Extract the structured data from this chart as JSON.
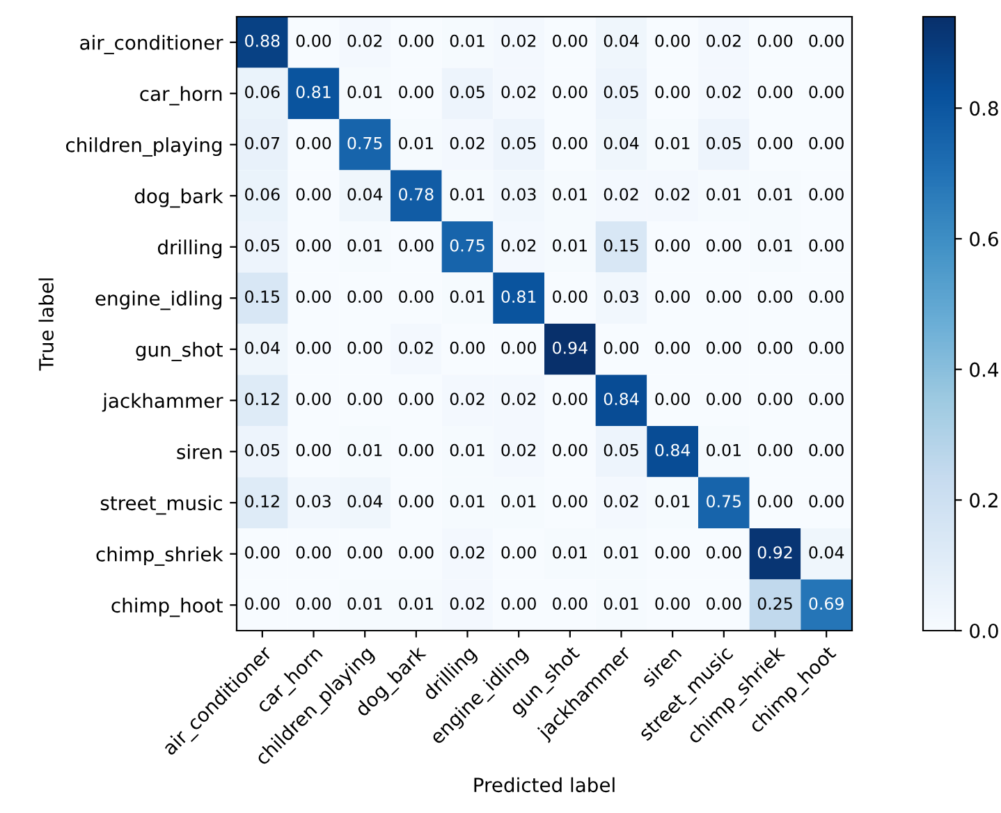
{
  "chart_data": {
    "type": "heatmap",
    "xlabel": "Predicted label",
    "ylabel": "True label",
    "categories": [
      "air_conditioner",
      "car_horn",
      "children_playing",
      "dog_bark",
      "drilling",
      "engine_idling",
      "gun_shot",
      "jackhammer",
      "siren",
      "street_music",
      "chimp_shriek",
      "chimp_hoot"
    ],
    "y_categories": [
      "air_conditioner",
      "car_horn",
      "children_playing",
      "dog_bark",
      "drilling",
      "engine_idling",
      "gun_shot",
      "jackhammer",
      "siren",
      "street_music",
      "chimp_shriek",
      "chimp_hoot"
    ],
    "cells": [
      [
        0.88,
        0.0,
        0.02,
        0.0,
        0.01,
        0.02,
        0.0,
        0.04,
        0.0,
        0.02,
        0.0,
        0.0
      ],
      [
        0.06,
        0.81,
        0.01,
        0.0,
        0.05,
        0.02,
        0.0,
        0.05,
        0.0,
        0.02,
        0.0,
        0.0
      ],
      [
        0.07,
        0.0,
        0.75,
        0.01,
        0.02,
        0.05,
        0.0,
        0.04,
        0.01,
        0.05,
        0.0,
        0.0
      ],
      [
        0.06,
        0.0,
        0.04,
        0.78,
        0.01,
        0.03,
        0.01,
        0.02,
        0.02,
        0.01,
        0.01,
        0.0
      ],
      [
        0.05,
        0.0,
        0.01,
        0.0,
        0.75,
        0.02,
        0.01,
        0.15,
        0.0,
        0.0,
        0.01,
        0.0
      ],
      [
        0.15,
        0.0,
        0.0,
        0.0,
        0.01,
        0.81,
        0.0,
        0.03,
        0.0,
        0.0,
        0.0,
        0.0
      ],
      [
        0.04,
        0.0,
        0.0,
        0.02,
        0.0,
        0.0,
        0.94,
        0.0,
        0.0,
        0.0,
        0.0,
        0.0
      ],
      [
        0.12,
        0.0,
        0.0,
        0.0,
        0.02,
        0.02,
        0.0,
        0.84,
        0.0,
        0.0,
        0.0,
        0.0
      ],
      [
        0.05,
        0.0,
        0.01,
        0.0,
        0.01,
        0.02,
        0.0,
        0.05,
        0.84,
        0.01,
        0.0,
        0.0
      ],
      [
        0.12,
        0.03,
        0.04,
        0.0,
        0.01,
        0.01,
        0.0,
        0.02,
        0.01,
        0.75,
        0.0,
        0.0
      ],
      [
        0.0,
        0.0,
        0.0,
        0.0,
        0.02,
        0.0,
        0.01,
        0.01,
        0.0,
        0.0,
        0.92,
        0.04
      ],
      [
        0.0,
        0.0,
        0.01,
        0.01,
        0.02,
        0.0,
        0.0,
        0.01,
        0.0,
        0.0,
        0.25,
        0.69
      ]
    ],
    "cell_labels": [
      [
        "0.88",
        "0.00",
        "0.02",
        "0.00",
        "0.01",
        "0.02",
        "0.00",
        "0.04",
        "0.00",
        "0.02",
        "0.00",
        "0.00"
      ],
      [
        "0.06",
        "0.81",
        "0.01",
        "0.00",
        "0.05",
        "0.02",
        "0.00",
        "0.05",
        "0.00",
        "0.02",
        "0.00",
        "0.00"
      ],
      [
        "0.07",
        "0.00",
        "0.75",
        "0.01",
        "0.02",
        "0.05",
        "0.00",
        "0.04",
        "0.01",
        "0.05",
        "0.00",
        "0.00"
      ],
      [
        "0.06",
        "0.00",
        "0.04",
        "0.78",
        "0.01",
        "0.03",
        "0.01",
        "0.02",
        "0.02",
        "0.01",
        "0.01",
        "0.00"
      ],
      [
        "0.05",
        "0.00",
        "0.01",
        "0.00",
        "0.75",
        "0.02",
        "0.01",
        "0.15",
        "0.00",
        "0.00",
        "0.01",
        "0.00"
      ],
      [
        "0.15",
        "0.00",
        "0.00",
        "0.00",
        "0.01",
        "0.81",
        "0.00",
        "0.03",
        "0.00",
        "0.00",
        "0.00",
        "0.00"
      ],
      [
        "0.04",
        "0.00",
        "0.00",
        "0.02",
        "0.00",
        "0.00",
        "0.94",
        "0.00",
        "0.00",
        "0.00",
        "0.00",
        "0.00"
      ],
      [
        "0.12",
        "0.00",
        "0.00",
        "0.00",
        "0.02",
        "0.02",
        "0.00",
        "0.84",
        "0.00",
        "0.00",
        "0.00",
        "0.00"
      ],
      [
        "0.05",
        "0.00",
        "0.01",
        "0.00",
        "0.01",
        "0.02",
        "0.00",
        "0.05",
        "0.84",
        "0.01",
        "0.00",
        "0.00"
      ],
      [
        "0.12",
        "0.03",
        "0.04",
        "0.00",
        "0.01",
        "0.01",
        "0.00",
        "0.02",
        "0.01",
        "0.75",
        "0.00",
        "0.00"
      ],
      [
        "0.00",
        "0.00",
        "0.00",
        "0.00",
        "0.02",
        "0.00",
        "0.01",
        "0.01",
        "0.00",
        "0.00",
        "0.92",
        "0.04"
      ],
      [
        "0.00",
        "0.00",
        "0.01",
        "0.01",
        "0.02",
        "0.00",
        "0.00",
        "0.01",
        "0.00",
        "0.00",
        "0.25",
        "0.69"
      ]
    ],
    "clim": [
      0,
      0.94
    ],
    "cticks": [
      {
        "value": 0,
        "label": "0.0"
      },
      0.2,
      0.4,
      0.6,
      0.8
    ]
  }
}
